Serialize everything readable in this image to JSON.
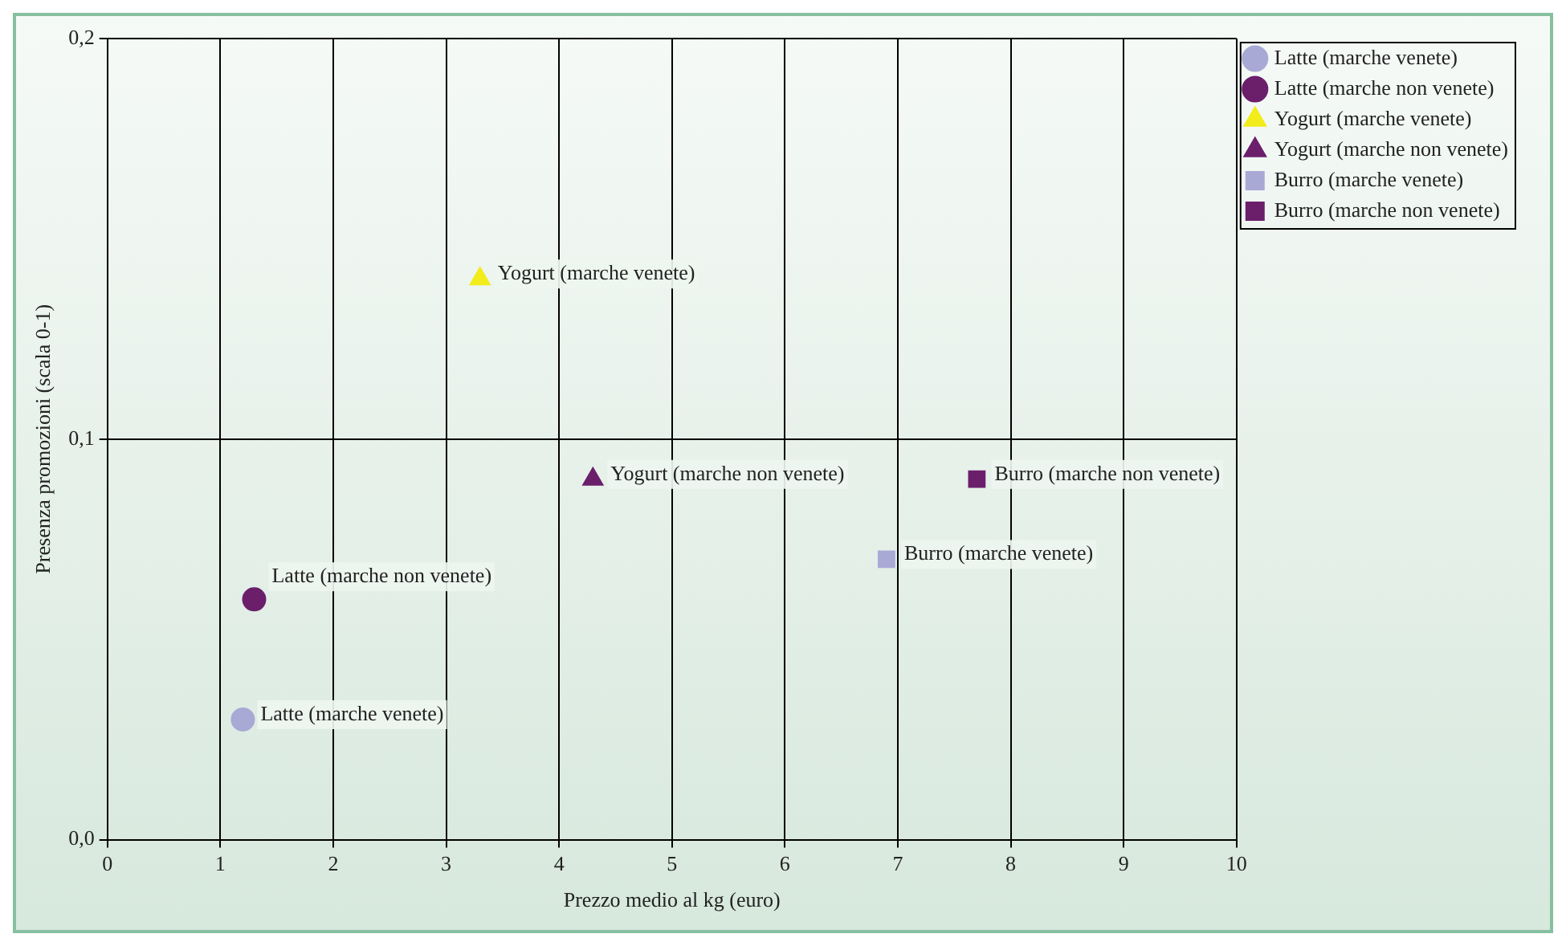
{
  "chart_data": {
    "type": "scatter",
    "xlabel": "Prezzo medio al kg (euro)",
    "ylabel": "Presenza promozioni (scala 0-1)",
    "xlim": [
      0,
      10
    ],
    "xticks": [
      0,
      1,
      2,
      3,
      4,
      5,
      6,
      7,
      8,
      9,
      10
    ],
    "ylim": [
      0,
      0.2
    ],
    "yticks": [
      {
        "value": 0,
        "label": "0,0"
      },
      {
        "value": 0.1,
        "label": "0,1"
      },
      {
        "value": 0.2,
        "label": "0,2"
      }
    ],
    "grid": true,
    "legend": "right",
    "series": [
      {
        "name": "Latte (marche venete)",
        "color": "#a9a9d6",
        "marker": "circle",
        "x": [
          1.2
        ],
        "values": [
          0.03
        ]
      },
      {
        "name": "Latte (marche non venete)",
        "color": "#6b1f6b",
        "marker": "circle",
        "x": [
          1.3
        ],
        "values": [
          0.06
        ]
      },
      {
        "name": "Yogurt (marche venete)",
        "color": "#f2ec1a",
        "marker": "triangle",
        "x": [
          3.3
        ],
        "values": [
          0.14
        ]
      },
      {
        "name": "Yogurt (marche non venete)",
        "color": "#6b1f6b",
        "marker": "triangle",
        "x": [
          4.3
        ],
        "values": [
          0.09
        ]
      },
      {
        "name": "Burro (marche venete)",
        "color": "#a9a9d6",
        "marker": "square",
        "x": [
          6.9
        ],
        "values": [
          0.07
        ]
      },
      {
        "name": "Burro (marche non venete)",
        "color": "#6b1f6b",
        "marker": "square",
        "x": [
          7.7
        ],
        "values": [
          0.09
        ]
      }
    ]
  }
}
